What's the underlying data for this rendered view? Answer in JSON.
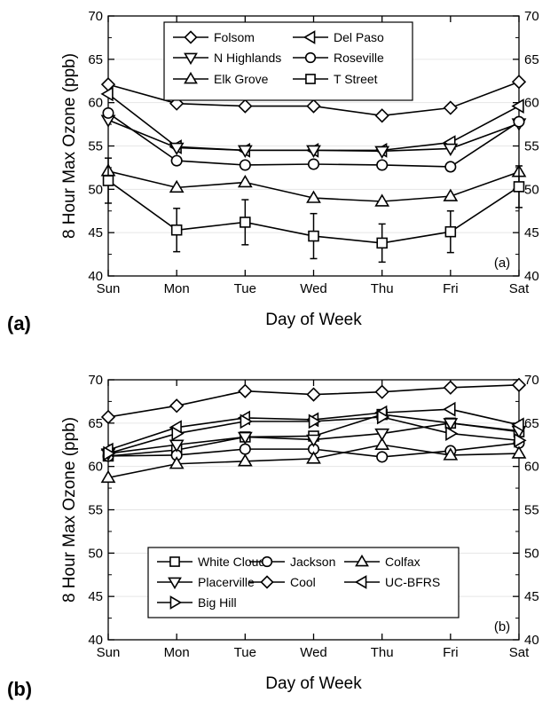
{
  "figure": {
    "chart_data": [
      {
        "type": "line",
        "panel_label": "(a)",
        "panel_tag": "(a)",
        "xlabel": "Day of Week",
        "ylabel": "8 Hour Max Ozone (ppb)",
        "categories": [
          "Sun",
          "Mon",
          "Tue",
          "Wed",
          "Thu",
          "Fri",
          "Sat"
        ],
        "ylim": [
          40,
          70
        ],
        "yticks": [
          40,
          45,
          50,
          55,
          60,
          65,
          70
        ],
        "legend_position": "top-center",
        "legend_columns": 2,
        "series": [
          {
            "name": "Folsom",
            "marker": "diamond",
            "values": [
              62.1,
              59.9,
              59.6,
              59.6,
              58.5,
              59.4,
              62.4
            ]
          },
          {
            "name": "Del Paso",
            "marker": "triangle-left",
            "values": [
              61.0,
              54.9,
              54.5,
              54.5,
              54.5,
              55.4,
              59.6
            ]
          },
          {
            "name": "N Highlands",
            "marker": "triangle-down",
            "values": [
              58.0,
              54.8,
              54.5,
              54.5,
              54.4,
              54.7,
              57.6
            ]
          },
          {
            "name": "Roseville",
            "marker": "circle",
            "values": [
              58.8,
              53.3,
              52.8,
              52.9,
              52.8,
              52.6,
              57.8
            ]
          },
          {
            "name": "Elk Grove",
            "marker": "triangle-up",
            "values": [
              52.1,
              50.2,
              50.8,
              49.0,
              48.6,
              49.2,
              52.0
            ]
          },
          {
            "name": "T Street",
            "marker": "square",
            "values": [
              51.0,
              45.3,
              46.2,
              44.6,
              43.8,
              45.1,
              50.3
            ],
            "error": [
              2.6,
              2.5,
              2.6,
              2.6,
              2.2,
              2.4,
              2.4
            ]
          }
        ]
      },
      {
        "type": "line",
        "panel_label": "(b)",
        "panel_tag": "(b)",
        "xlabel": "Day of Week",
        "ylabel": "8 Hour Max Ozone (ppb)",
        "categories": [
          "Sun",
          "Mon",
          "Tue",
          "Wed",
          "Thu",
          "Fri",
          "Sat"
        ],
        "ylim": [
          40,
          70
        ],
        "yticks": [
          40,
          45,
          50,
          55,
          60,
          65,
          70
        ],
        "legend_position": "bottom-center",
        "legend_columns": 3,
        "series": [
          {
            "name": "White Cloud",
            "marker": "square",
            "values": [
              61.2,
              61.9,
              63.4,
              63.5,
              66.0,
              65.0,
              64.0
            ]
          },
          {
            "name": "Jackson",
            "marker": "circle",
            "values": [
              61.2,
              61.3,
              62.0,
              62.0,
              61.1,
              61.8,
              62.7
            ]
          },
          {
            "name": "Colfax",
            "marker": "triangle-up",
            "values": [
              58.7,
              60.3,
              60.6,
              60.9,
              62.5,
              61.3,
              61.5
            ]
          },
          {
            "name": "Placerville",
            "marker": "triangle-down",
            "values": [
              61.5,
              62.5,
              63.4,
              63.1,
              63.8,
              65.0,
              64.1
            ]
          },
          {
            "name": "Cool",
            "marker": "diamond",
            "values": [
              65.7,
              67.0,
              68.7,
              68.3,
              68.6,
              69.1,
              69.4
            ]
          },
          {
            "name": "UC-BFRS",
            "marker": "triangle-left",
            "values": [
              61.9,
              64.5,
              65.6,
              65.4,
              66.2,
              66.6,
              64.8
            ]
          },
          {
            "name": "Big Hill",
            "marker": "triangle-right",
            "values": [
              61.5,
              63.8,
              65.2,
              65.2,
              65.7,
              63.8,
              63.0
            ]
          }
        ]
      }
    ]
  }
}
